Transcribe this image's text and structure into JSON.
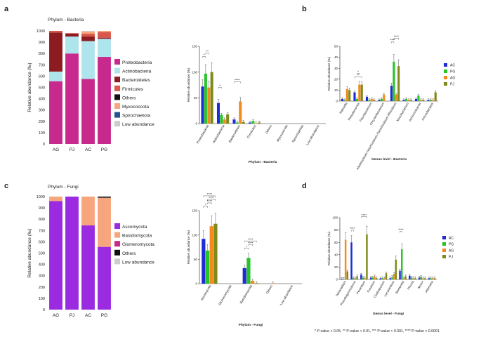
{
  "panels": {
    "a": "a",
    "b": "b",
    "c": "c",
    "d": "d"
  },
  "footnote": "* P-value < 0.05, ** P-value < 0.01, *** P-value < 0.001, **** P-value < 0.0001",
  "chart_data": [
    {
      "id": "a-left",
      "type": "bar",
      "stacked": true,
      "title": "Phylum - Bacteria",
      "ylabel": "Relative abundance (‰)",
      "xlabel": "",
      "ylim": [
        0,
        1000
      ],
      "yticks": [
        "0",
        "100",
        "200",
        "300",
        "400",
        "500",
        "600",
        "700",
        "800",
        "900",
        "1000"
      ],
      "categories": [
        "AG",
        "PJ",
        "AC",
        "PG"
      ],
      "series": [
        {
          "name": "Proteobacteria",
          "color": "#c72a8c",
          "values": [
            555,
            800,
            575,
            770
          ]
        },
        {
          "name": "Actinobacteria",
          "color": "#aee5ec",
          "values": [
            85,
            150,
            335,
            160
          ]
        },
        {
          "name": "Bacteroidetes",
          "color": "#8c1c22",
          "values": [
            345,
            25,
            40,
            10
          ]
        },
        {
          "name": "Firmicutes",
          "color": "#d9574b",
          "values": [
            15,
            5,
            25,
            50
          ]
        },
        {
          "name": "Others",
          "color": "#111111",
          "values": [
            0,
            0,
            0,
            0
          ]
        },
        {
          "name": "Myxococcota",
          "color": "#f7a57d",
          "values": [
            0,
            0,
            20,
            10
          ]
        },
        {
          "name": "Spirochaetota",
          "color": "#24538f",
          "values": [
            0,
            0,
            0,
            0
          ]
        },
        {
          "name": "Low abundance",
          "color": "#cccccc",
          "values": [
            0,
            0,
            5,
            0
          ]
        }
      ]
    },
    {
      "id": "a-right",
      "type": "bar",
      "title": "",
      "xlabel": "Phylum - Bacteria",
      "ylabel": "Relative abundance (‰)",
      "ylim": [
        0,
        150
      ],
      "yticks": [
        "0",
        "50",
        "100",
        "150"
      ],
      "categories": [
        "Proteobacteria",
        "Actinobacteria",
        "Bacteroidetes",
        "Firmicutes",
        "Others",
        "Myxococcota",
        "Spirochaetota",
        "Low abundance"
      ],
      "series": [
        {
          "name": "AC",
          "color": "#1f2bd6",
          "values": [
            72,
            40,
            8,
            2,
            0,
            0,
            0,
            0
          ]
        },
        {
          "name": "PG",
          "color": "#27c427",
          "values": [
            97,
            17,
            2,
            5,
            0,
            0,
            0,
            0
          ]
        },
        {
          "name": "AG",
          "color": "#f28a1e",
          "values": [
            70,
            8,
            43,
            1,
            0,
            0,
            0,
            0
          ]
        },
        {
          "name": "PJ",
          "color": "#7f8a1a",
          "values": [
            100,
            18,
            3,
            2,
            0,
            0,
            0,
            0
          ]
        }
      ],
      "significance": [
        {
          "category": 0,
          "from": 0,
          "to": 1,
          "label": "*"
        },
        {
          "category": 0,
          "from": 1,
          "to": 2,
          "label": "**"
        },
        {
          "category": 1,
          "from": 0,
          "to": 1,
          "label": "*"
        },
        {
          "category": 2,
          "from": 0,
          "to": 2,
          "label": "****"
        }
      ]
    },
    {
      "id": "b",
      "type": "bar",
      "title": "",
      "xlabel": "Genus level - Bacteria",
      "ylabel": "Relative abundance (‰)",
      "ylim": [
        0,
        50
      ],
      "yticks": [
        "0",
        "10",
        "20",
        "30",
        "40",
        "50"
      ],
      "legend": "right",
      "categories": [
        "Rahnella",
        "Pseudomonas",
        "Flavobacterium",
        "Chryseobacterium",
        "Allorhizobium-Neorhizobium-Pararhizobium-Rhizobium",
        "Mycobacterium",
        "Achromobacter",
        "Amycolatopsis"
      ],
      "series": [
        {
          "name": "AC",
          "color": "#1f2bd6",
          "values": [
            2,
            8,
            4,
            1,
            14,
            1,
            2,
            1
          ]
        },
        {
          "name": "PG",
          "color": "#27c427",
          "values": [
            1,
            2,
            1,
            2,
            36,
            2,
            5,
            1
          ]
        },
        {
          "name": "AG",
          "color": "#f28a1e",
          "values": [
            11,
            15,
            2,
            6,
            6,
            1,
            1,
            1
          ]
        },
        {
          "name": "PJ",
          "color": "#7f8a1a",
          "values": [
            10,
            15,
            1,
            0,
            32,
            1,
            1,
            8
          ]
        }
      ],
      "significance": [
        {
          "category": 1,
          "from": 0,
          "to": 3,
          "label": "*"
        },
        {
          "category": 1,
          "from": 1,
          "to": 2,
          "label": "*"
        },
        {
          "category": 4,
          "from": 0,
          "to": 1,
          "label": "****"
        },
        {
          "category": 4,
          "from": 1,
          "to": 3,
          "label": "****"
        }
      ]
    },
    {
      "id": "c-left",
      "type": "bar",
      "stacked": true,
      "title": "Phylum - Fungi",
      "ylabel": "Relative abundance (‰)",
      "xlabel": "",
      "ylim": [
        0,
        1000
      ],
      "yticks": [
        "0",
        "100",
        "200",
        "300",
        "400",
        "500",
        "600",
        "700",
        "800",
        "900",
        "1000"
      ],
      "categories": [
        "AG",
        "PJ",
        "AC",
        "PG"
      ],
      "series": [
        {
          "name": "Ascomycota",
          "color": "#9a2be0",
          "values": [
            960,
            1000,
            745,
            555
          ]
        },
        {
          "name": "Basidiomycota",
          "color": "#f7a57d",
          "values": [
            40,
            0,
            255,
            435
          ]
        },
        {
          "name": "Glomeromycota",
          "color": "#c72a8c",
          "values": [
            0,
            0,
            0,
            0
          ]
        },
        {
          "name": "Others",
          "color": "#111111",
          "values": [
            0,
            0,
            0,
            10
          ]
        },
        {
          "name": "Low abundance",
          "color": "#cccccc",
          "values": [
            0,
            0,
            0,
            0
          ]
        }
      ]
    },
    {
      "id": "c-right",
      "type": "bar",
      "title": "",
      "xlabel": "Phylum - Fungi",
      "ylabel": "Relative abundance (‰)",
      "ylim": [
        0,
        150
      ],
      "yticks": [
        "0",
        "50",
        "100",
        "150"
      ],
      "categories": [
        "Ascomycota",
        "Glomeromycota",
        "Basidiomycota",
        "Others",
        "Low abundance"
      ],
      "series": [
        {
          "name": "AC",
          "color": "#1f2bd6",
          "values": [
            92,
            0,
            32,
            0,
            0
          ]
        },
        {
          "name": "PG",
          "color": "#27c427",
          "values": [
            68,
            0,
            53,
            0,
            0
          ]
        },
        {
          "name": "AG",
          "color": "#f28a1e",
          "values": [
            118,
            0,
            6,
            1,
            0
          ]
        },
        {
          "name": "PJ",
          "color": "#7f8a1a",
          "values": [
            123,
            0,
            1,
            0,
            0
          ]
        }
      ],
      "significance": [
        {
          "category": 0,
          "from": 0,
          "to": 1,
          "label": "*"
        },
        {
          "category": 0,
          "from": 1,
          "to": 2,
          "label": "****"
        },
        {
          "category": 0,
          "from": 1,
          "to": 3,
          "label": "****"
        },
        {
          "category": 0,
          "from": 0,
          "to": 3,
          "label": "****"
        },
        {
          "category": 2,
          "from": 0,
          "to": 1,
          "label": "*"
        },
        {
          "category": 2,
          "from": 1,
          "to": 2,
          "label": "****"
        },
        {
          "category": 2,
          "from": 0,
          "to": 3,
          "label": "****"
        }
      ]
    },
    {
      "id": "d",
      "type": "bar",
      "title": "",
      "xlabel": "Genus level - Fungi",
      "ylabel": "Relative abundance (‰)",
      "ylim": [
        0,
        100
      ],
      "yticks": [
        "0",
        "20",
        "40",
        "60",
        "80",
        "100"
      ],
      "legend": "right",
      "categories": [
        "Tetracladium",
        "Pseudogymnoascus",
        "Penicillium",
        "Fusarium",
        "Cladosporium",
        "Lecanicillium",
        "Mortierella",
        "Phoma",
        "Mucor",
        "Alternaria"
      ],
      "series": [
        {
          "name": "AC",
          "color": "#1f2bd6",
          "values": [
            1,
            60,
            8,
            3,
            2,
            2,
            14,
            6,
            3,
            2
          ]
        },
        {
          "name": "PG",
          "color": "#27c427",
          "values": [
            1,
            2,
            3,
            3,
            2,
            4,
            49,
            3,
            4,
            2
          ]
        },
        {
          "name": "AG",
          "color": "#f28a1e",
          "values": [
            64,
            2,
            2,
            5,
            2,
            9,
            2,
            2,
            2,
            2
          ]
        },
        {
          "name": "PJ",
          "color": "#7f8a1a",
          "values": [
            13,
            5,
            73,
            2,
            10,
            32,
            5,
            2,
            2,
            2
          ]
        }
      ],
      "significance": [
        {
          "category": 1,
          "from": 0,
          "to": 1,
          "label": "****"
        },
        {
          "category": 2,
          "from": 0,
          "to": 3,
          "label": "****"
        },
        {
          "category": 6,
          "from": 0,
          "to": 1,
          "label": "****"
        }
      ]
    }
  ]
}
